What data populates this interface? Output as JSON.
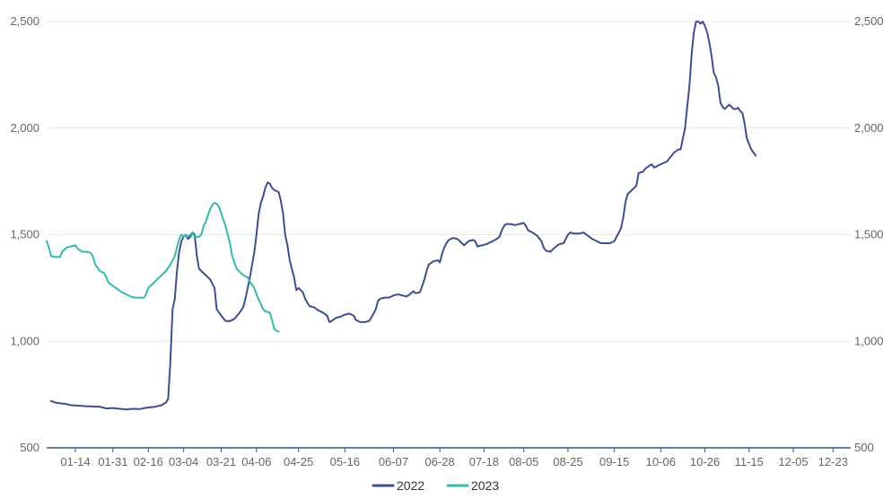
{
  "chart_data": {
    "type": "line",
    "title": "",
    "xlabel": "",
    "ylabel": "",
    "ylim": [
      500,
      2500
    ],
    "yticks": [
      500,
      1000,
      1500,
      2000,
      2500
    ],
    "ytick_labels": [
      "500",
      "1,000",
      "1,500",
      "2,000",
      "2,500"
    ],
    "y_axis_sides": [
      "left",
      "right"
    ],
    "grid": "horizontal",
    "legend_position": "bottom-center",
    "x_unit": "day of year",
    "x_range": [
      1,
      365
    ],
    "xticks": [
      {
        "day": 14,
        "label": "01-14"
      },
      {
        "day": 31,
        "label": "01-31"
      },
      {
        "day": 47,
        "label": "02-16"
      },
      {
        "day": 63,
        "label": "03-04"
      },
      {
        "day": 80,
        "label": "03-21"
      },
      {
        "day": 96,
        "label": "04-06"
      },
      {
        "day": 115,
        "label": "04-25"
      },
      {
        "day": 136,
        "label": "05-16"
      },
      {
        "day": 158,
        "label": "06-07"
      },
      {
        "day": 179,
        "label": "06-28"
      },
      {
        "day": 199,
        "label": "07-18"
      },
      {
        "day": 217,
        "label": "08-05"
      },
      {
        "day": 237,
        "label": "08-25"
      },
      {
        "day": 258,
        "label": "09-15"
      },
      {
        "day": 279,
        "label": "10-06"
      },
      {
        "day": 299,
        "label": "10-26"
      },
      {
        "day": 319,
        "label": "11-15"
      },
      {
        "day": 339,
        "label": "12-05"
      },
      {
        "day": 357,
        "label": "12-23"
      }
    ],
    "series": [
      {
        "name": "2022",
        "color": "#3f4f8c",
        "points": [
          [
            3,
            720
          ],
          [
            5,
            712
          ],
          [
            8,
            708
          ],
          [
            10,
            705
          ],
          [
            12,
            700
          ],
          [
            15,
            698
          ],
          [
            20,
            695
          ],
          [
            25,
            693
          ],
          [
            28,
            685
          ],
          [
            31,
            687
          ],
          [
            34,
            683
          ],
          [
            37,
            680
          ],
          [
            40,
            683
          ],
          [
            43,
            682
          ],
          [
            46,
            688
          ],
          [
            50,
            693
          ],
          [
            53,
            700
          ],
          [
            55,
            712
          ],
          [
            56,
            730
          ],
          [
            57,
            900
          ],
          [
            58,
            1150
          ],
          [
            59,
            1200
          ],
          [
            60,
            1330
          ],
          [
            61,
            1420
          ],
          [
            62,
            1470
          ],
          [
            63,
            1490
          ],
          [
            64,
            1500
          ],
          [
            65,
            1480
          ],
          [
            66,
            1490
          ],
          [
            67,
            1510
          ],
          [
            68,
            1500
          ],
          [
            69,
            1400
          ],
          [
            70,
            1340
          ],
          [
            73,
            1310
          ],
          [
            75,
            1290
          ],
          [
            77,
            1250
          ],
          [
            78,
            1150
          ],
          [
            80,
            1120
          ],
          [
            82,
            1095
          ],
          [
            84,
            1095
          ],
          [
            86,
            1105
          ],
          [
            88,
            1130
          ],
          [
            90,
            1160
          ],
          [
            91,
            1200
          ],
          [
            93,
            1300
          ],
          [
            95,
            1420
          ],
          [
            96,
            1500
          ],
          [
            97,
            1600
          ],
          [
            98,
            1650
          ],
          [
            99,
            1680
          ],
          [
            100,
            1720
          ],
          [
            101,
            1745
          ],
          [
            102,
            1740
          ],
          [
            103,
            1720
          ],
          [
            104,
            1710
          ],
          [
            106,
            1700
          ],
          [
            107,
            1660
          ],
          [
            108,
            1600
          ],
          [
            109,
            1500
          ],
          [
            110,
            1450
          ],
          [
            111,
            1380
          ],
          [
            113,
            1300
          ],
          [
            114,
            1240
          ],
          [
            115,
            1250
          ],
          [
            116,
            1240
          ],
          [
            117,
            1230
          ],
          [
            118,
            1200
          ],
          [
            119,
            1180
          ],
          [
            120,
            1165
          ],
          [
            122,
            1160
          ],
          [
            124,
            1145
          ],
          [
            126,
            1135
          ],
          [
            128,
            1120
          ],
          [
            129,
            1090
          ],
          [
            130,
            1095
          ],
          [
            132,
            1110
          ],
          [
            134,
            1115
          ],
          [
            136,
            1125
          ],
          [
            138,
            1130
          ],
          [
            140,
            1120
          ],
          [
            141,
            1100
          ],
          [
            143,
            1090
          ],
          [
            145,
            1090
          ],
          [
            147,
            1095
          ],
          [
            149,
            1130
          ],
          [
            150,
            1150
          ],
          [
            151,
            1190
          ],
          [
            152,
            1200
          ],
          [
            154,
            1205
          ],
          [
            156,
            1205
          ],
          [
            158,
            1215
          ],
          [
            160,
            1220
          ],
          [
            162,
            1215
          ],
          [
            164,
            1210
          ],
          [
            166,
            1225
          ],
          [
            167,
            1235
          ],
          [
            168,
            1225
          ],
          [
            170,
            1230
          ],
          [
            171,
            1260
          ],
          [
            172,
            1290
          ],
          [
            173,
            1330
          ],
          [
            174,
            1360
          ],
          [
            176,
            1375
          ],
          [
            178,
            1380
          ],
          [
            179,
            1370
          ],
          [
            180,
            1410
          ],
          [
            181,
            1440
          ],
          [
            182,
            1460
          ],
          [
            183,
            1475
          ],
          [
            185,
            1485
          ],
          [
            187,
            1480
          ],
          [
            189,
            1460
          ],
          [
            190,
            1450
          ],
          [
            192,
            1470
          ],
          [
            194,
            1475
          ],
          [
            195,
            1470
          ],
          [
            196,
            1445
          ],
          [
            198,
            1450
          ],
          [
            200,
            1455
          ],
          [
            202,
            1465
          ],
          [
            204,
            1475
          ],
          [
            206,
            1490
          ],
          [
            207,
            1520
          ],
          [
            208,
            1540
          ],
          [
            209,
            1550
          ],
          [
            211,
            1550
          ],
          [
            213,
            1545
          ],
          [
            215,
            1550
          ],
          [
            217,
            1555
          ],
          [
            218,
            1540
          ],
          [
            219,
            1520
          ],
          [
            221,
            1510
          ],
          [
            223,
            1495
          ],
          [
            225,
            1470
          ],
          [
            226,
            1440
          ],
          [
            227,
            1425
          ],
          [
            229,
            1420
          ],
          [
            231,
            1440
          ],
          [
            233,
            1455
          ],
          [
            235,
            1460
          ],
          [
            236,
            1480
          ],
          [
            237,
            1500
          ],
          [
            238,
            1510
          ],
          [
            240,
            1505
          ],
          [
            242,
            1505
          ],
          [
            244,
            1510
          ],
          [
            246,
            1495
          ],
          [
            248,
            1480
          ],
          [
            250,
            1470
          ],
          [
            252,
            1460
          ],
          [
            254,
            1460
          ],
          [
            256,
            1460
          ],
          [
            258,
            1470
          ],
          [
            259,
            1490
          ],
          [
            261,
            1530
          ],
          [
            262,
            1580
          ],
          [
            263,
            1650
          ],
          [
            264,
            1690
          ],
          [
            266,
            1710
          ],
          [
            268,
            1730
          ],
          [
            269,
            1790
          ],
          [
            271,
            1795
          ],
          [
            272,
            1810
          ],
          [
            274,
            1825
          ],
          [
            275,
            1830
          ],
          [
            276,
            1815
          ],
          [
            278,
            1825
          ],
          [
            280,
            1835
          ],
          [
            282,
            1845
          ],
          [
            283,
            1860
          ],
          [
            285,
            1885
          ],
          [
            287,
            1900
          ],
          [
            288,
            1900
          ],
          [
            289,
            1950
          ],
          [
            290,
            2000
          ],
          [
            291,
            2100
          ],
          [
            292,
            2200
          ],
          [
            293,
            2350
          ],
          [
            294,
            2450
          ],
          [
            295,
            2500
          ],
          [
            296,
            2500
          ],
          [
            297,
            2490
          ],
          [
            298,
            2500
          ],
          [
            299,
            2480
          ],
          [
            300,
            2450
          ],
          [
            301,
            2400
          ],
          [
            302,
            2340
          ],
          [
            303,
            2260
          ],
          [
            304,
            2240
          ],
          [
            305,
            2200
          ],
          [
            306,
            2120
          ],
          [
            307,
            2100
          ],
          [
            308,
            2090
          ],
          [
            309,
            2100
          ],
          [
            310,
            2110
          ],
          [
            311,
            2100
          ],
          [
            312,
            2090
          ],
          [
            313,
            2090
          ],
          [
            314,
            2095
          ],
          [
            315,
            2080
          ],
          [
            316,
            2070
          ],
          [
            317,
            2020
          ],
          [
            318,
            1950
          ],
          [
            320,
            1900
          ],
          [
            322,
            1870
          ]
        ]
      },
      {
        "name": "2023",
        "color": "#36b9ac",
        "points": [
          [
            1,
            1470
          ],
          [
            2,
            1440
          ],
          [
            3,
            1400
          ],
          [
            5,
            1395
          ],
          [
            7,
            1395
          ],
          [
            8,
            1420
          ],
          [
            10,
            1440
          ],
          [
            12,
            1445
          ],
          [
            14,
            1450
          ],
          [
            15,
            1435
          ],
          [
            17,
            1420
          ],
          [
            19,
            1420
          ],
          [
            21,
            1415
          ],
          [
            22,
            1395
          ],
          [
            23,
            1360
          ],
          [
            25,
            1330
          ],
          [
            27,
            1320
          ],
          [
            28,
            1300
          ],
          [
            29,
            1275
          ],
          [
            31,
            1260
          ],
          [
            33,
            1245
          ],
          [
            35,
            1230
          ],
          [
            37,
            1220
          ],
          [
            39,
            1210
          ],
          [
            41,
            1205
          ],
          [
            43,
            1205
          ],
          [
            45,
            1205
          ],
          [
            46,
            1220
          ],
          [
            47,
            1250
          ],
          [
            49,
            1270
          ],
          [
            51,
            1290
          ],
          [
            53,
            1310
          ],
          [
            55,
            1330
          ],
          [
            57,
            1360
          ],
          [
            59,
            1400
          ],
          [
            60,
            1440
          ],
          [
            61,
            1480
          ],
          [
            62,
            1500
          ],
          [
            63,
            1490
          ],
          [
            64,
            1500
          ],
          [
            65,
            1490
          ],
          [
            67,
            1510
          ],
          [
            68,
            1490
          ],
          [
            70,
            1490
          ],
          [
            71,
            1500
          ],
          [
            72,
            1540
          ],
          [
            73,
            1560
          ],
          [
            74,
            1590
          ],
          [
            75,
            1620
          ],
          [
            76,
            1640
          ],
          [
            77,
            1650
          ],
          [
            78,
            1645
          ],
          [
            79,
            1630
          ],
          [
            80,
            1600
          ],
          [
            81,
            1570
          ],
          [
            82,
            1540
          ],
          [
            83,
            1500
          ],
          [
            84,
            1460
          ],
          [
            85,
            1400
          ],
          [
            86,
            1370
          ],
          [
            87,
            1340
          ],
          [
            89,
            1320
          ],
          [
            90,
            1310
          ],
          [
            92,
            1300
          ],
          [
            93,
            1280
          ],
          [
            95,
            1250
          ],
          [
            96,
            1220
          ],
          [
            97,
            1195
          ],
          [
            98,
            1175
          ],
          [
            99,
            1150
          ],
          [
            100,
            1140
          ],
          [
            102,
            1135
          ],
          [
            103,
            1100
          ],
          [
            104,
            1060
          ],
          [
            105,
            1050
          ],
          [
            106,
            1045
          ]
        ]
      }
    ]
  }
}
